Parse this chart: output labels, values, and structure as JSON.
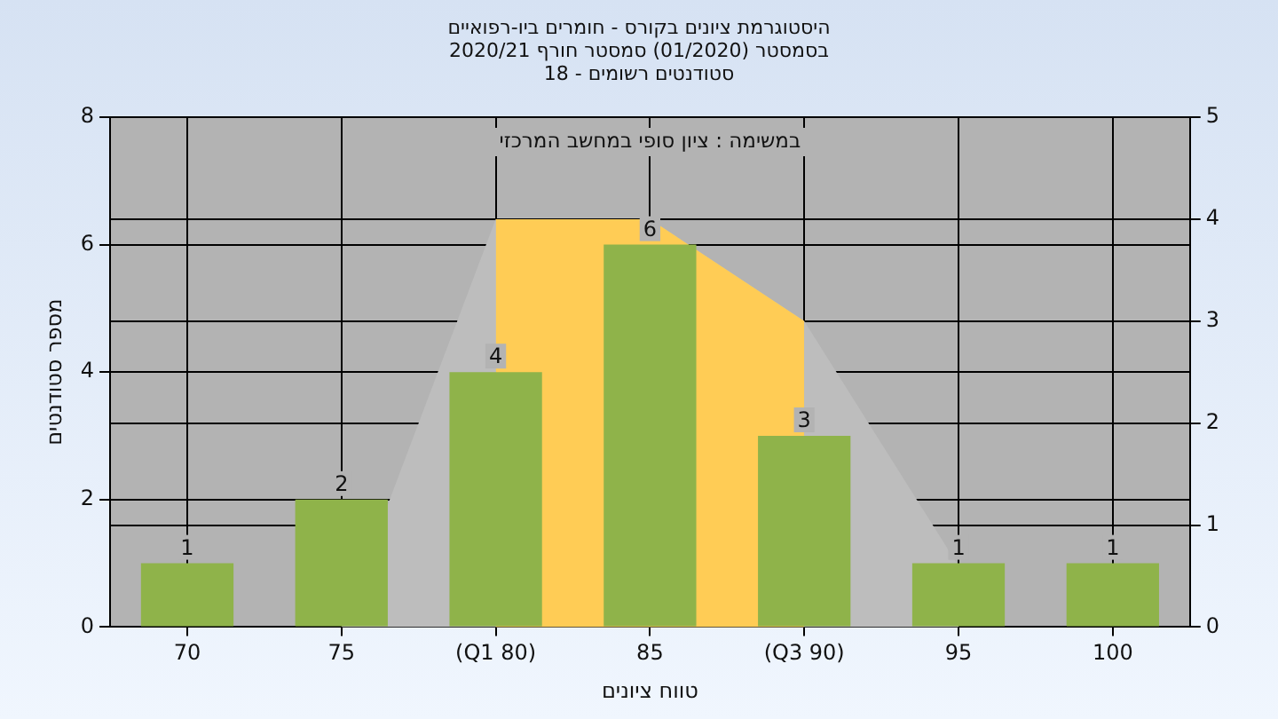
{
  "chart_data": {
    "type": "bar",
    "title": "היסטוגרמת ציונים בקורס - חומרים ביו-רפואיים\nבסמסטר  (01/2020)  סמסטר חורף  2020/21\nסטודנטים רשומים - 18",
    "xlabel": "טווח ציונים",
    "ylabel": "מספר סטודנטים",
    "annotations": [
      "במשימה : ציון סופי במחשב המרכזי"
    ],
    "categories": [
      "70",
      "75",
      "(Q1 80)",
      "85",
      "(Q3 90)",
      "95",
      "100"
    ],
    "series": [
      {
        "color": "#8fb34a",
        "values": [
          1,
          2,
          4,
          6,
          3,
          1,
          1
        ],
        "value_labels": [
          "1",
          "2",
          "4",
          "6",
          "3",
          "1",
          "1"
        ]
      },
      {
        "type": "area",
        "axis": "y2",
        "color": "#ffcc55",
        "values": [
          null,
          null,
          4,
          4,
          3,
          null,
          null
        ]
      },
      {
        "type": "area",
        "axis": "y2",
        "color": "#bdbdbd",
        "values": [
          null,
          0,
          4,
          4,
          3,
          0.6,
          null
        ]
      }
    ],
    "ylim": [
      0,
      8
    ],
    "yticks": [
      0,
      2,
      4,
      6,
      8
    ],
    "y2lim": [
      0,
      5
    ],
    "y2ticks": [
      0,
      1,
      2,
      3,
      4,
      5
    ],
    "grid": true,
    "legend": false
  }
}
